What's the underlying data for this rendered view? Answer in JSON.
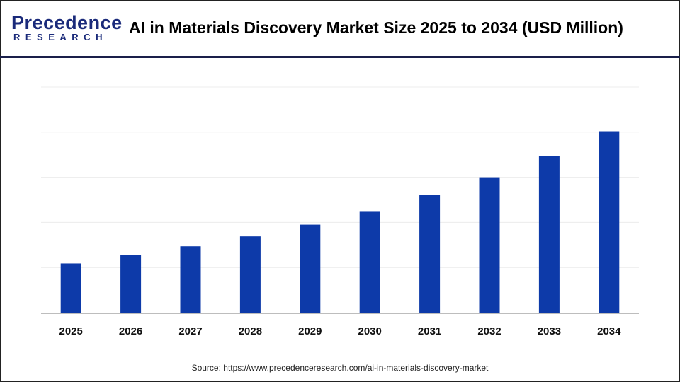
{
  "header": {
    "logo_top": "Precedence",
    "logo_bottom": "RESEARCH",
    "title": "AI in Materials Discovery Market Size 2025 to 2034 (USD Million)"
  },
  "source": "Source: https://www.precedenceresearch.com/ai-in-materials-discovery-market",
  "colors": {
    "bar": "#0d3aa9",
    "grid": "#ececec",
    "axis": "#bdbdbd",
    "brand": "#1a2a7a"
  },
  "chart_data": {
    "type": "bar",
    "title": "AI in Materials Discovery Market Size 2025 to 2034 (USD Million)",
    "categories": [
      "2025",
      "2026",
      "2027",
      "2028",
      "2029",
      "2030",
      "2031",
      "2032",
      "2033",
      "2034"
    ],
    "values": [
      1.09,
      1.27,
      1.47,
      1.69,
      1.95,
      2.25,
      2.61,
      3.0,
      3.47,
      4.02
    ],
    "value_note_units": "relative to gridline spacing (no y-axis labels shown)",
    "ylim": [
      0,
      5
    ],
    "grid": true,
    "y_axis_labels_shown": false,
    "legend": "none"
  }
}
